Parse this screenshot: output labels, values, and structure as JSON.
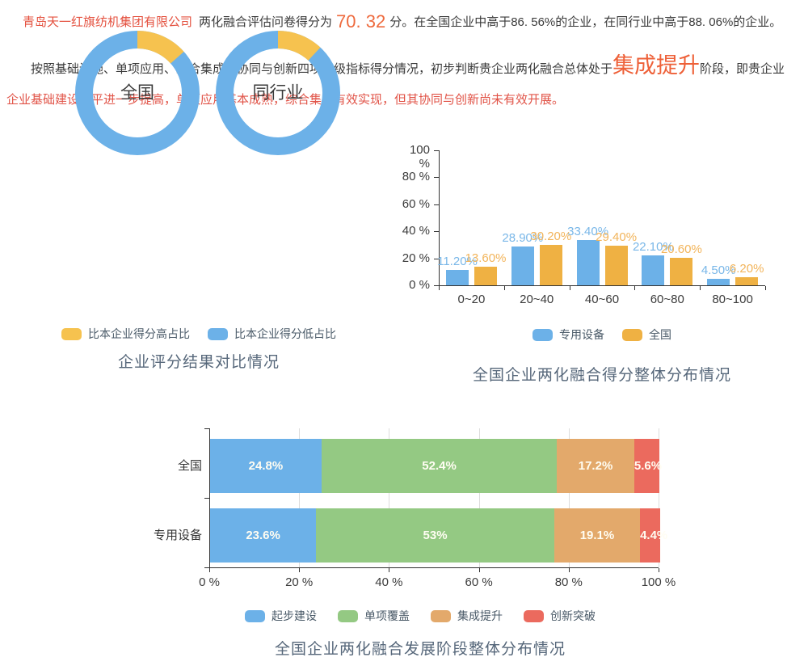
{
  "intro": {
    "company": "青岛天一红旗纺机集团有限公司",
    "score_prefix": "两化融合评估问卷得分为",
    "score": "70. 32",
    "score_suffix": "分。在全国企业中高于86. 56%的企业，在同行业中高于88. 06%的企业。",
    "para_part1": "按照基础设施、单项应用、综合集成、协同与创新四项一级指标得分情况，初步判断贵企业两化融合总体处于",
    "para_stage": "集成提升",
    "para_part2": "阶段，即贵企业",
    "para_part3": "企业基础建设水平进一步提高，单项应用基本成熟，综合集成有效实现，但其协同与创新尚未有效开展。"
  },
  "colors": {
    "blue": "#6cb1e8",
    "yellow": "#f6c24f",
    "bar_yellow": "#efb143",
    "green": "#94c983",
    "orange": "#e3a96b",
    "red": "#eb6a5e",
    "blue_label": "#79b7e8",
    "yellow_label": "#f2b45a"
  },
  "chart_data": [
    {
      "type": "pie",
      "subtype": "donut-pair",
      "title": "企业评分结果对比情况",
      "legend_position": "bottom",
      "legend": [
        {
          "label": "比本企业得分高占比",
          "color": "#f6c24f"
        },
        {
          "label": "比本企业得分低占比",
          "color": "#6cb1e8"
        }
      ],
      "donuts": [
        {
          "label": "全国",
          "slices": [
            {
              "name": "比本企业得分高占比",
              "value": 13.44
            },
            {
              "name": "比本企业得分低占比",
              "value": 86.56
            }
          ]
        },
        {
          "label": "同行业",
          "slices": [
            {
              "name": "比本企业得分高占比",
              "value": 11.94
            },
            {
              "name": "比本企业得分低占比",
              "value": 88.06
            }
          ]
        }
      ]
    },
    {
      "type": "bar",
      "subtype": "grouped-vertical",
      "title": "全国企业两化融合得分整体分布情况",
      "categories": [
        "0~20",
        "20~40",
        "40~60",
        "60~80",
        "80~100"
      ],
      "y_ticks": [
        "0 %",
        "20 %",
        "40 %",
        "60 %",
        "80 %",
        "100 %"
      ],
      "ylim": [
        0,
        100
      ],
      "grid": false,
      "legend_position": "bottom",
      "series": [
        {
          "name": "专用设备",
          "color": "#6cb1e8",
          "label_color": "#79b7e8",
          "values": [
            11.2,
            28.9,
            33.4,
            22.1,
            4.5
          ],
          "labels": [
            "11.20%",
            "28.90%",
            "33.40%",
            "22.10%",
            "4.50%"
          ]
        },
        {
          "name": "全国",
          "color": "#efb143",
          "label_color": "#f2b45a",
          "values": [
            13.6,
            30.2,
            29.4,
            20.6,
            6.2
          ],
          "labels": [
            "13.60%",
            "30.20%",
            "29.40%",
            "20.60%",
            "6.20%"
          ]
        }
      ]
    },
    {
      "type": "bar",
      "subtype": "stacked-horizontal",
      "title": "全国企业两化融合发展阶段整体分布情况",
      "categories": [
        "全国",
        "专用设备"
      ],
      "x_ticks": [
        "0 %",
        "20 %",
        "40 %",
        "60 %",
        "80 %",
        "100 %"
      ],
      "xlim": [
        0,
        100
      ],
      "grid": true,
      "legend_position": "bottom",
      "legend": [
        {
          "label": "起步建设",
          "color": "#6cb1e8"
        },
        {
          "label": "单项覆盖",
          "color": "#94c983"
        },
        {
          "label": "集成提升",
          "color": "#e3a96b"
        },
        {
          "label": "创新突破",
          "color": "#eb6a5e"
        }
      ],
      "series": [
        {
          "name": "起步建设",
          "color": "#6cb1e8",
          "values": [
            24.8,
            23.6
          ],
          "labels": [
            "24.8%",
            "23.6%"
          ]
        },
        {
          "name": "单项覆盖",
          "color": "#94c983",
          "values": [
            52.4,
            53.0
          ],
          "labels": [
            "52.4%",
            "53%"
          ]
        },
        {
          "name": "集成提升",
          "color": "#e3a96b",
          "values": [
            17.2,
            19.1
          ],
          "labels": [
            "17.2%",
            "19.1%"
          ]
        },
        {
          "name": "创新突破",
          "color": "#eb6a5e",
          "values": [
            5.6,
            4.4
          ],
          "labels": [
            "5.6%",
            "4.4%"
          ]
        }
      ]
    }
  ]
}
